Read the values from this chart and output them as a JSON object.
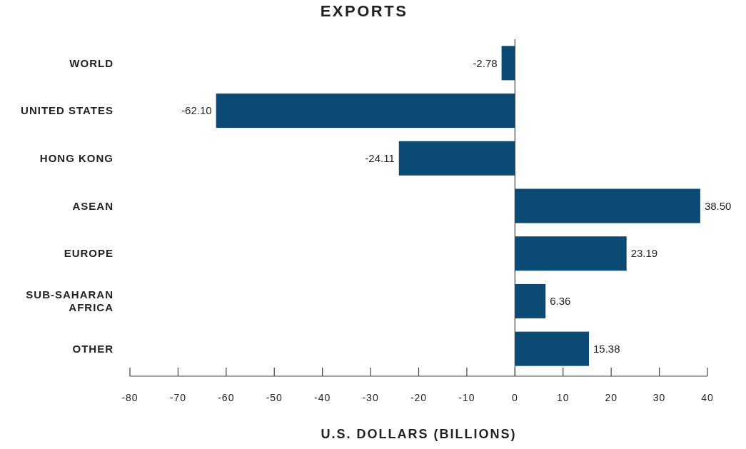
{
  "chart_data": {
    "type": "bar",
    "orientation": "horizontal",
    "title": "EXPORTS",
    "xlabel": "U.S. DOLLARS (BILLIONS)",
    "categories": [
      "WORLD",
      "UNITED STATES",
      "HONG KONG",
      "ASEAN",
      "EUROPE",
      "SUB-SAHARAN AFRICA",
      "OTHER"
    ],
    "values": [
      -2.78,
      -62.1,
      -24.11,
      38.5,
      23.19,
      6.36,
      15.38
    ],
    "value_labels": [
      "-2.78",
      "-62.10",
      "-24.11",
      "38.50",
      "23.19",
      "6.36",
      "15.38"
    ],
    "color": "#0b4a75",
    "xlim": [
      -80,
      40
    ],
    "xticks": [
      -80,
      -70,
      -60,
      -50,
      -40,
      -30,
      -20,
      -10,
      0,
      10,
      20,
      30,
      40
    ]
  }
}
